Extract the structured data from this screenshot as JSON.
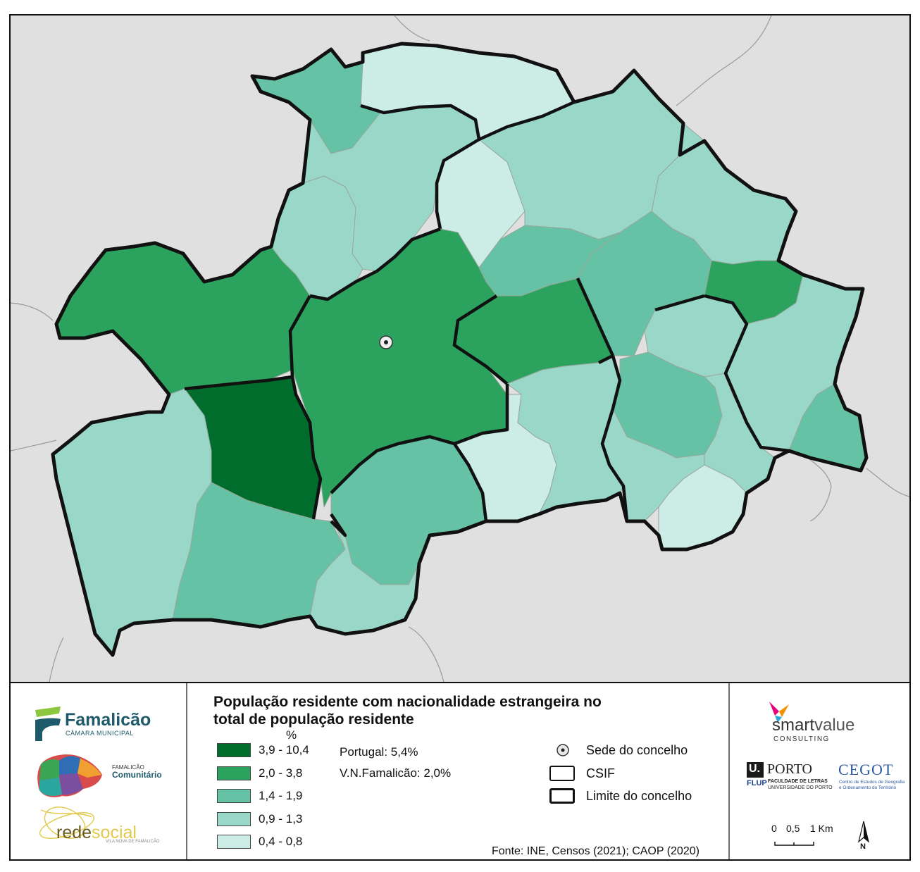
{
  "legend": {
    "title_line1": "População residente com nacionalidade estrangeira no",
    "title_line2": "total de população residente",
    "unit": "%",
    "classes": [
      {
        "label": "3,9 - 10,4",
        "color": "#006d2c"
      },
      {
        "label": "2,0 - 3,8",
        "color": "#2ca25f"
      },
      {
        "label": "1,4 - 1,9",
        "color": "#66c2a4"
      },
      {
        "label": "0,9 - 1,3",
        "color": "#99d8c9"
      },
      {
        "label": "0,4 - 0,8",
        "color": "#ccece6"
      }
    ],
    "portugal": "Portugal: 5,4%",
    "vnf": "V.N.Famalicão: 2,0%",
    "symbols": {
      "sede": "Sede do concelho",
      "csif": "CSIF",
      "limite": "Limite do concelho"
    },
    "source": "Fonte: INE, Censos (2021); CAOP (2020)"
  },
  "scale": {
    "ticks": [
      "0",
      "0,5",
      "1 Km"
    ],
    "north": "N"
  },
  "logos": {
    "famalicao": "Famalicão",
    "famalicao_sub": "CÂMARA MUNICIPAL",
    "comunitario_small": "FAMALICÃO",
    "comunitario": "Comunitário",
    "redesocial_a": "rede",
    "redesocial_b": "social",
    "redesocial_sub": "VILA NOVA DE FAMALICÃO",
    "smartvalue_a": "smart",
    "smartvalue_b": "value",
    "smartvalue_sub": "CONSULTING",
    "uporto_u": "U.",
    "uporto": "PORTO",
    "flup": "FLUP",
    "flup_line1": "FACULDADE DE LETRAS",
    "flup_line2": "UNIVERSIDADE DO PORTO",
    "cegot": "CEGOT",
    "cegot_line1": "Centro de Estudos de Geografia",
    "cegot_line2": "e Ordenamento do Território"
  },
  "colors": {
    "background": "#e0e0e0",
    "border": "#111111",
    "accent": "#2ca25f"
  }
}
